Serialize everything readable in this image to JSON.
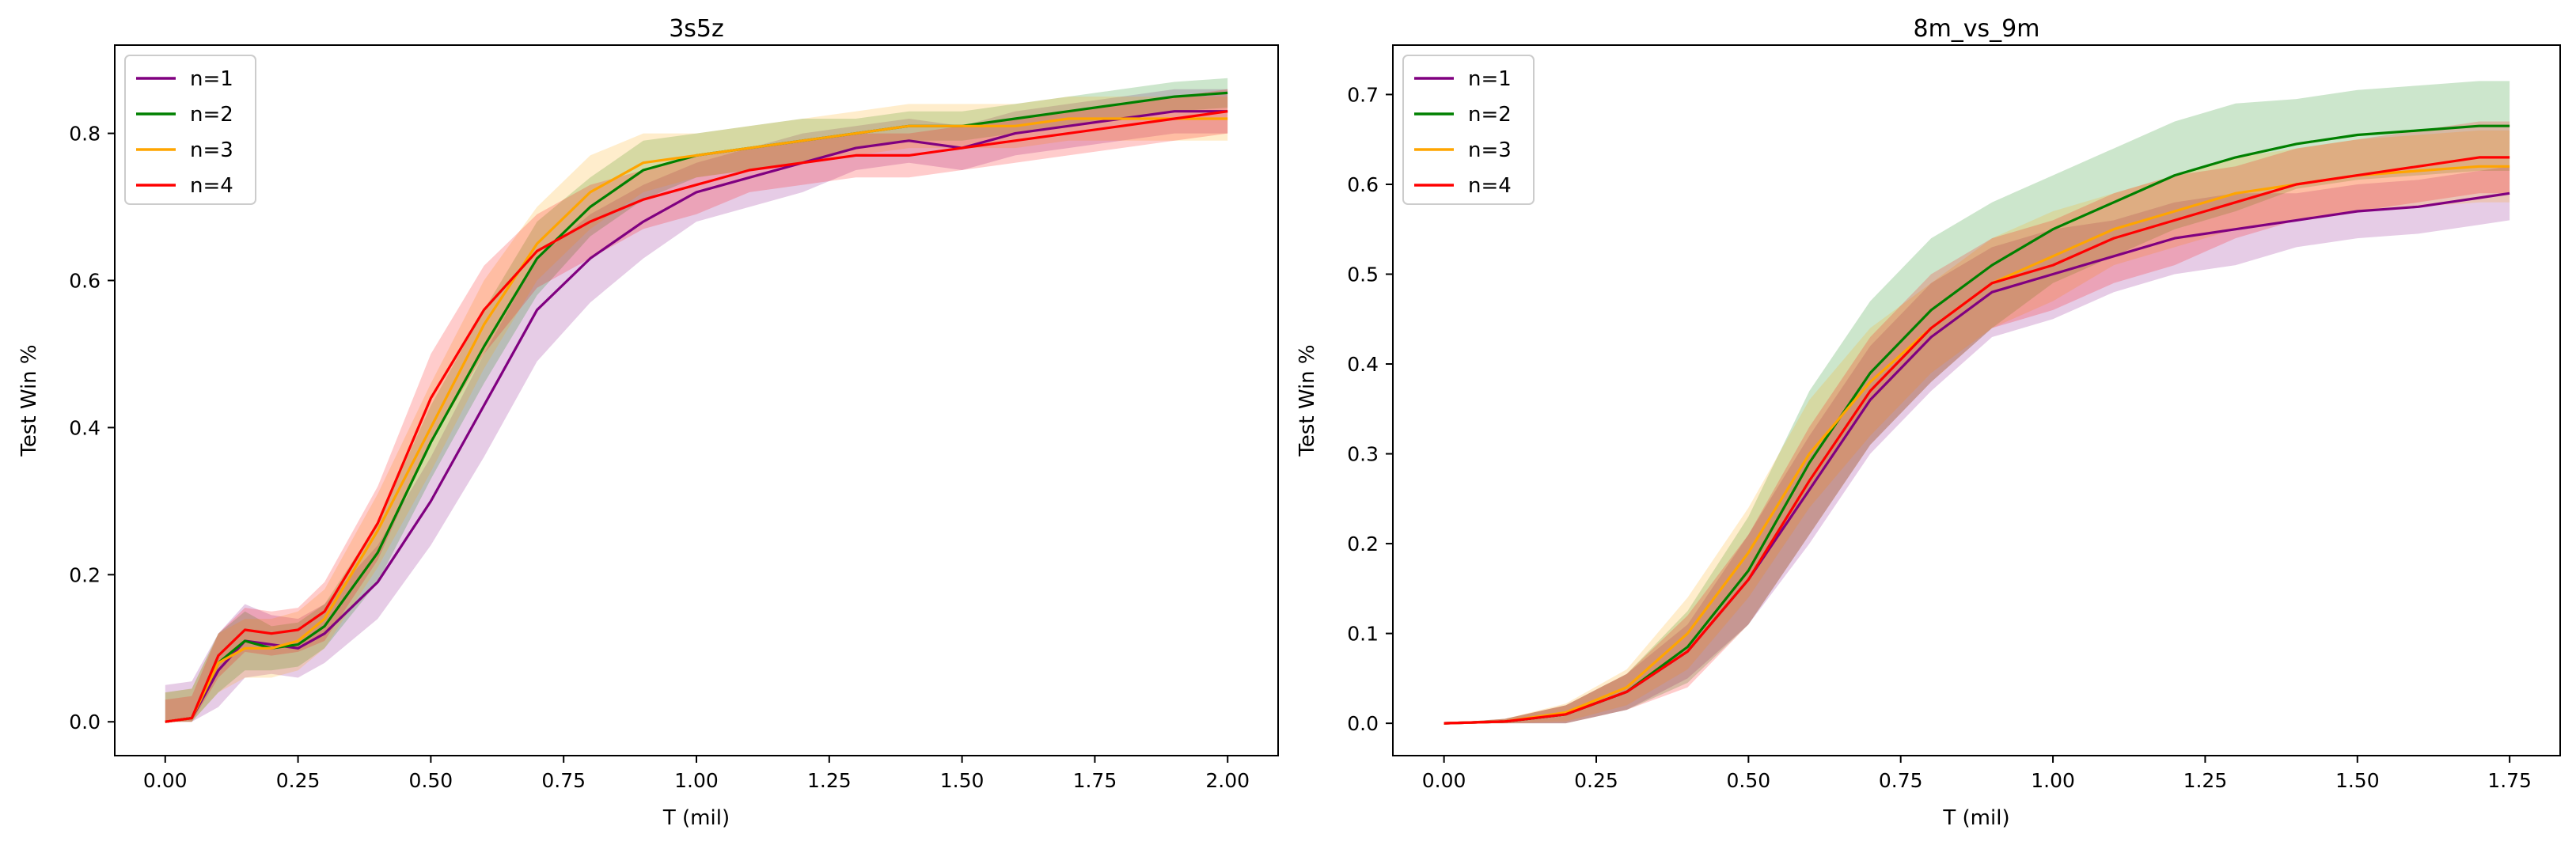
{
  "chart_data": [
    {
      "type": "line",
      "title": "3s5z",
      "xlabel": "T (mil)",
      "ylabel": "Test Win %",
      "xlim": [
        -0.095,
        2.095
      ],
      "ylim": [
        -0.046,
        0.92
      ],
      "xticks": [
        "0.00",
        "0.25",
        "0.50",
        "0.75",
        "1.00",
        "1.25",
        "1.50",
        "1.75",
        "2.00"
      ],
      "xtick_values": [
        0,
        0.25,
        0.5,
        0.75,
        1.0,
        1.25,
        1.5,
        1.75,
        2.0
      ],
      "yticks": [
        "0.0",
        "0.2",
        "0.4",
        "0.6",
        "0.8"
      ],
      "ytick_values": [
        0,
        0.2,
        0.4,
        0.6,
        0.8
      ],
      "grid": false,
      "legend_position": "top-left",
      "x": [
        0,
        0.05,
        0.1,
        0.15,
        0.2,
        0.25,
        0.3,
        0.4,
        0.5,
        0.6,
        0.7,
        0.8,
        0.9,
        1.0,
        1.1,
        1.2,
        1.3,
        1.4,
        1.5,
        1.6,
        1.7,
        1.8,
        1.9,
        2.0
      ],
      "series": [
        {
          "name": "n=1",
          "color": "#800080",
          "values": [
            0,
            0.005,
            0.07,
            0.11,
            0.105,
            0.1,
            0.12,
            0.19,
            0.3,
            0.43,
            0.56,
            0.63,
            0.68,
            0.72,
            0.74,
            0.76,
            0.78,
            0.79,
            0.78,
            0.8,
            0.81,
            0.82,
            0.83,
            0.83
          ],
          "band": [
            0.05,
            0.05,
            0.05,
            0.05,
            0.04,
            0.04,
            0.04,
            0.05,
            0.06,
            0.07,
            0.07,
            0.06,
            0.05,
            0.04,
            0.04,
            0.04,
            0.03,
            0.03,
            0.03,
            0.03,
            0.03,
            0.03,
            0.03,
            0.03
          ]
        },
        {
          "name": "n=2",
          "color": "#008000",
          "values": [
            0,
            0.005,
            0.08,
            0.11,
            0.1,
            0.105,
            0.13,
            0.23,
            0.38,
            0.51,
            0.63,
            0.7,
            0.75,
            0.77,
            0.78,
            0.79,
            0.8,
            0.81,
            0.81,
            0.82,
            0.83,
            0.84,
            0.85,
            0.855
          ],
          "band": [
            0.04,
            0.04,
            0.04,
            0.04,
            0.03,
            0.03,
            0.03,
            0.04,
            0.05,
            0.05,
            0.05,
            0.04,
            0.04,
            0.03,
            0.03,
            0.03,
            0.02,
            0.02,
            0.02,
            0.02,
            0.02,
            0.02,
            0.02,
            0.02
          ]
        },
        {
          "name": "n=3",
          "color": "#ffa500",
          "values": [
            0,
            0.005,
            0.08,
            0.1,
            0.1,
            0.11,
            0.14,
            0.26,
            0.4,
            0.54,
            0.65,
            0.72,
            0.76,
            0.77,
            0.78,
            0.79,
            0.8,
            0.81,
            0.81,
            0.81,
            0.82,
            0.82,
            0.82,
            0.82
          ],
          "band": [
            0.04,
            0.04,
            0.04,
            0.04,
            0.04,
            0.04,
            0.04,
            0.05,
            0.06,
            0.06,
            0.05,
            0.05,
            0.04,
            0.03,
            0.03,
            0.03,
            0.03,
            0.03,
            0.03,
            0.03,
            0.03,
            0.03,
            0.03,
            0.03
          ]
        },
        {
          "name": "n=4",
          "color": "#ff0000",
          "values": [
            0,
            0.005,
            0.09,
            0.125,
            0.12,
            0.125,
            0.15,
            0.27,
            0.44,
            0.56,
            0.64,
            0.68,
            0.71,
            0.73,
            0.75,
            0.76,
            0.77,
            0.77,
            0.78,
            0.79,
            0.8,
            0.81,
            0.82,
            0.83
          ],
          "band": [
            0.03,
            0.03,
            0.03,
            0.03,
            0.03,
            0.03,
            0.04,
            0.05,
            0.06,
            0.06,
            0.05,
            0.05,
            0.04,
            0.04,
            0.03,
            0.03,
            0.03,
            0.03,
            0.03,
            0.03,
            0.03,
            0.03,
            0.03,
            0.03
          ]
        }
      ]
    },
    {
      "type": "line",
      "title": "8m_vs_9m",
      "xlabel": "T (mil)",
      "ylabel": "Test Win %",
      "xlim": [
        -0.084,
        1.833
      ],
      "ylim": [
        -0.036,
        0.755
      ],
      "xticks": [
        "0.00",
        "0.25",
        "0.50",
        "0.75",
        "1.00",
        "1.25",
        "1.50",
        "1.75"
      ],
      "xtick_values": [
        0,
        0.25,
        0.5,
        0.75,
        1.0,
        1.25,
        1.5,
        1.75
      ],
      "yticks": [
        "0.0",
        "0.1",
        "0.2",
        "0.3",
        "0.4",
        "0.5",
        "0.6",
        "0.7"
      ],
      "ytick_values": [
        0,
        0.1,
        0.2,
        0.3,
        0.4,
        0.5,
        0.6,
        0.7
      ],
      "grid": false,
      "legend_position": "top-left",
      "x": [
        0,
        0.1,
        0.2,
        0.3,
        0.4,
        0.5,
        0.6,
        0.7,
        0.8,
        0.9,
        1.0,
        1.1,
        1.2,
        1.3,
        1.4,
        1.5,
        1.6,
        1.7,
        1.75
      ],
      "series": [
        {
          "name": "n=1",
          "color": "#800080",
          "values": [
            0,
            0.002,
            0.01,
            0.035,
            0.08,
            0.16,
            0.26,
            0.36,
            0.43,
            0.48,
            0.5,
            0.52,
            0.54,
            0.55,
            0.56,
            0.57,
            0.575,
            0.585,
            0.59
          ],
          "band": [
            0,
            0.003,
            0.01,
            0.02,
            0.03,
            0.05,
            0.06,
            0.06,
            0.06,
            0.05,
            0.05,
            0.04,
            0.04,
            0.04,
            0.03,
            0.03,
            0.03,
            0.03,
            0.03
          ]
        },
        {
          "name": "n=2",
          "color": "#008000",
          "values": [
            0,
            0.002,
            0.01,
            0.035,
            0.085,
            0.17,
            0.29,
            0.39,
            0.46,
            0.51,
            0.55,
            0.58,
            0.61,
            0.63,
            0.645,
            0.655,
            0.66,
            0.665,
            0.665
          ],
          "band": [
            0,
            0.003,
            0.01,
            0.02,
            0.04,
            0.06,
            0.08,
            0.08,
            0.08,
            0.07,
            0.06,
            0.06,
            0.06,
            0.06,
            0.05,
            0.05,
            0.05,
            0.05,
            0.05
          ]
        },
        {
          "name": "n=3",
          "color": "#ffa500",
          "values": [
            0,
            0.002,
            0.012,
            0.04,
            0.1,
            0.19,
            0.3,
            0.38,
            0.44,
            0.49,
            0.52,
            0.55,
            0.57,
            0.59,
            0.6,
            0.61,
            0.615,
            0.62,
            0.62
          ],
          "band": [
            0,
            0.003,
            0.01,
            0.02,
            0.04,
            0.05,
            0.06,
            0.06,
            0.05,
            0.05,
            0.05,
            0.04,
            0.04,
            0.04,
            0.04,
            0.04,
            0.04,
            0.04,
            0.04
          ]
        },
        {
          "name": "n=4",
          "color": "#ff0000",
          "values": [
            0,
            0.002,
            0.01,
            0.035,
            0.08,
            0.16,
            0.27,
            0.37,
            0.44,
            0.49,
            0.51,
            0.54,
            0.56,
            0.58,
            0.6,
            0.61,
            0.62,
            0.63,
            0.63
          ],
          "band": [
            0,
            0.003,
            0.01,
            0.02,
            0.04,
            0.05,
            0.06,
            0.06,
            0.06,
            0.05,
            0.05,
            0.05,
            0.05,
            0.04,
            0.04,
            0.04,
            0.04,
            0.04,
            0.04
          ]
        }
      ]
    }
  ]
}
